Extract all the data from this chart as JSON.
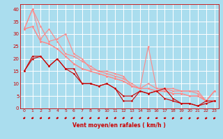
{
  "background_color": "#aaddee",
  "grid_color": "#ffffff",
  "line_color_dark": "#cc0000",
  "line_color_light": "#ff8888",
  "xlabel": "Vent moyen/en rafales ( km/h )",
  "xlabel_color": "#cc0000",
  "tick_color": "#cc0000",
  "ylim": [
    0,
    42
  ],
  "xlim": [
    -0.5,
    23.5
  ],
  "yticks": [
    0,
    5,
    10,
    15,
    20,
    25,
    30,
    35,
    40
  ],
  "xticks": [
    0,
    1,
    2,
    3,
    4,
    5,
    6,
    7,
    8,
    9,
    10,
    11,
    12,
    13,
    14,
    15,
    16,
    17,
    18,
    19,
    20,
    21,
    22,
    23
  ],
  "series_light": [
    [
      32,
      40,
      33,
      27,
      28,
      30,
      22,
      20,
      16,
      15,
      15,
      14,
      13,
      9,
      8,
      25,
      8,
      8,
      8,
      7,
      7,
      7,
      3,
      7
    ],
    [
      32,
      40,
      28,
      32,
      27,
      22,
      21,
      19,
      17,
      15,
      14,
      13,
      12,
      10,
      8,
      10,
      8,
      8,
      7,
      7,
      7,
      6,
      3,
      7
    ],
    [
      32,
      33,
      27,
      26,
      24,
      21,
      18,
      16,
      15,
      14,
      13,
      12,
      11,
      9,
      8,
      8,
      7,
      7,
      6,
      6,
      5,
      5,
      3,
      3
    ],
    [
      32,
      33,
      27,
      26,
      24,
      21,
      18,
      16,
      15,
      14,
      13,
      12,
      11,
      9,
      8,
      8,
      7,
      7,
      6,
      6,
      5,
      5,
      3,
      7
    ]
  ],
  "series_dark": [
    [
      15,
      21,
      21,
      17,
      20,
      16,
      16,
      10,
      10,
      9,
      10,
      8,
      3,
      3,
      7,
      6,
      7,
      8,
      4,
      2,
      2,
      1,
      2,
      3
    ],
    [
      15,
      20,
      21,
      17,
      20,
      16,
      14,
      10,
      10,
      9,
      10,
      8,
      5,
      5,
      7,
      6,
      7,
      4,
      3,
      2,
      2,
      1,
      3,
      3
    ]
  ],
  "arrow_angles": [
    225,
    225,
    225,
    225,
    225,
    225,
    225,
    225,
    225,
    225,
    225,
    225,
    225,
    225,
    225,
    225,
    200,
    200,
    45,
    45,
    45,
    45,
    45,
    45
  ]
}
